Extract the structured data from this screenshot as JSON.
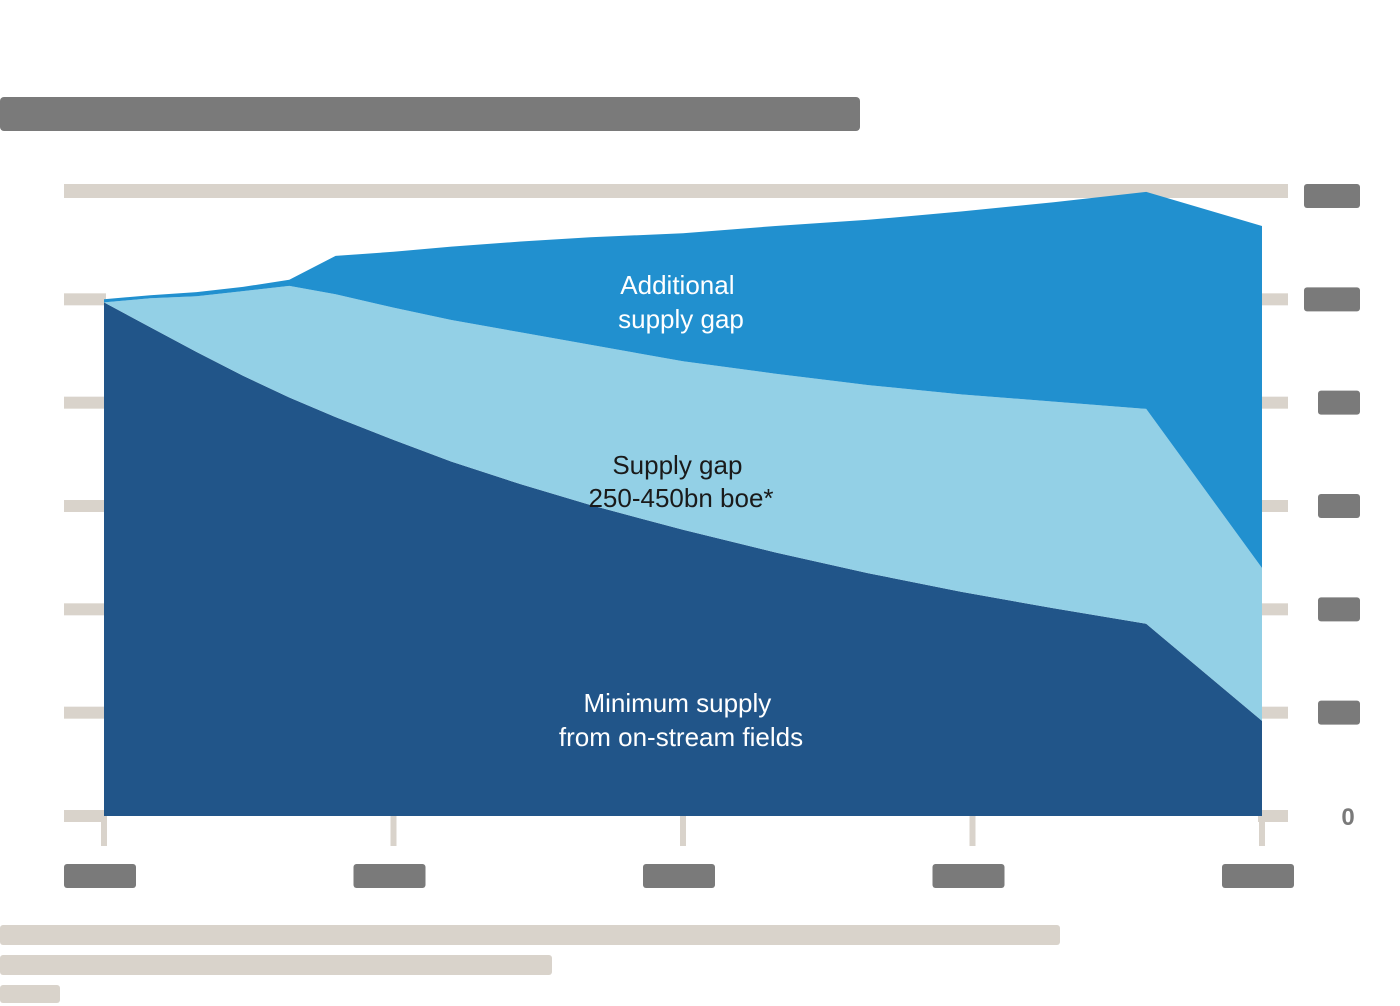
{
  "chart_data": {
    "type": "area",
    "stacked": true,
    "title": "",
    "xlabel": "",
    "ylabel": "",
    "x_ticks": [
      "",
      "",
      "",
      "",
      ""
    ],
    "y_ticks": [
      "",
      "",
      "",
      "",
      "",
      "",
      "0"
    ],
    "x_range": [
      0,
      1
    ],
    "y_range": [
      0,
      6
    ],
    "grid": true,
    "annotations": {
      "additional": [
        "Additional",
        "supply gap"
      ],
      "gap": [
        "Supply gap",
        "250-450bn boe*"
      ],
      "minimum": [
        "Minimum supply",
        "from on-stream fields"
      ]
    },
    "series": [
      {
        "color": "#215589",
        "x": [
          0,
          0.04,
          0.08,
          0.12,
          0.16,
          0.2,
          0.25,
          0.3,
          0.36,
          0.42,
          0.5,
          0.58,
          0.66,
          0.74,
          0.82,
          0.9,
          1.0
        ],
        "values": [
          4.97,
          4.73,
          4.49,
          4.26,
          4.05,
          3.86,
          3.64,
          3.43,
          3.21,
          3.01,
          2.77,
          2.55,
          2.35,
          2.17,
          2.01,
          1.86,
          0.92
        ]
      },
      {
        "color": "#93d0e6",
        "x": [
          0,
          0.04,
          0.08,
          0.12,
          0.16,
          0.2,
          0.25,
          0.3,
          0.36,
          0.42,
          0.5,
          0.58,
          0.66,
          0.74,
          0.82,
          0.9,
          1.0
        ],
        "values": [
          0.0,
          0.28,
          0.54,
          0.82,
          1.08,
          1.19,
          1.28,
          1.37,
          1.47,
          1.55,
          1.63,
          1.73,
          1.82,
          1.91,
          2.0,
          2.08,
          1.48
        ]
      },
      {
        "color": "#2190cf",
        "x": [
          0,
          0.04,
          0.08,
          0.12,
          0.16,
          0.2,
          0.25,
          0.3,
          0.36,
          0.42,
          0.5,
          0.58,
          0.66,
          0.74,
          0.82,
          0.9,
          1.0
        ],
        "values": [
          0.03,
          0.03,
          0.04,
          0.04,
          0.06,
          0.37,
          0.54,
          0.71,
          0.88,
          1.04,
          1.24,
          1.43,
          1.6,
          1.77,
          1.93,
          2.1,
          3.31
        ]
      }
    ]
  }
}
